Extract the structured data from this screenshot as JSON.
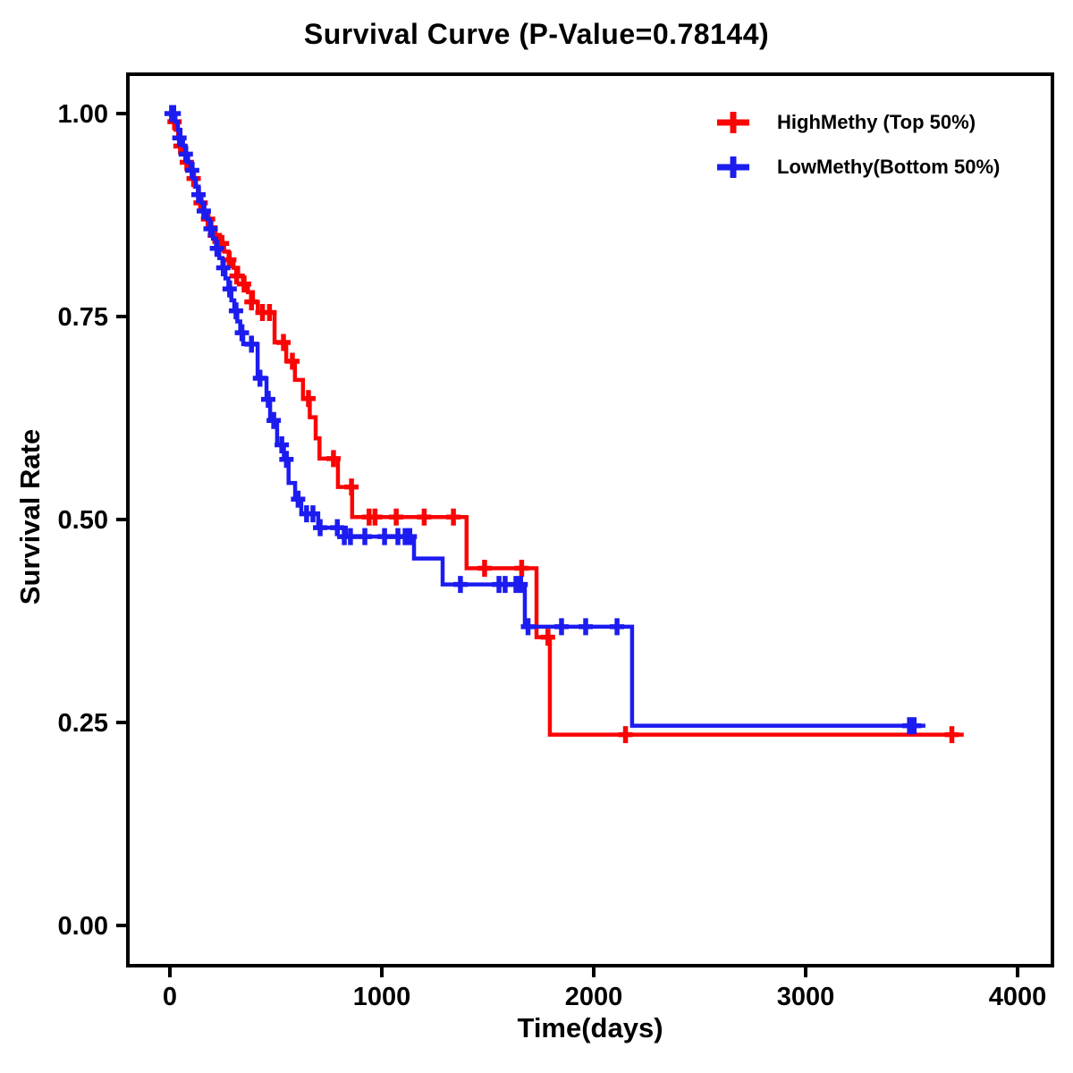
{
  "chart_data": {
    "type": "line",
    "subtype": "kaplan-meier-step",
    "title": "Survival Curve (P-Value=0.78144)",
    "xlabel": "Time(days)",
    "ylabel": "Survival Rate",
    "xlim": [
      0,
      4000
    ],
    "ylim": [
      0.0,
      1.0
    ],
    "x_ticks": [
      {
        "value": 0,
        "label": "0"
      },
      {
        "value": 1000,
        "label": "1000"
      },
      {
        "value": 2000,
        "label": "2000"
      },
      {
        "value": 3000,
        "label": "3000"
      },
      {
        "value": 4000,
        "label": "4000"
      }
    ],
    "y_ticks": [
      {
        "value": 0.0,
        "label": "0.00"
      },
      {
        "value": 0.25,
        "label": "0.25"
      },
      {
        "value": 0.5,
        "label": "0.50"
      },
      {
        "value": 0.75,
        "label": "0.75"
      },
      {
        "value": 1.0,
        "label": "1.00"
      }
    ],
    "grid": false,
    "legend_position": "top-right",
    "series": [
      {
        "name": "HighMethy (Top 50%)",
        "color": "#fa0505",
        "end_time": 3746,
        "points": [
          [
            0,
            1.0
          ],
          [
            14,
            0.99
          ],
          [
            27,
            0.98
          ],
          [
            39,
            0.97
          ],
          [
            51,
            0.96
          ],
          [
            63,
            0.95
          ],
          [
            76,
            0.94
          ],
          [
            90,
            0.93
          ],
          [
            104,
            0.92
          ],
          [
            118,
            0.91
          ],
          [
            132,
            0.9
          ],
          [
            147,
            0.89
          ],
          [
            162,
            0.88
          ],
          [
            178,
            0.87
          ],
          [
            196,
            0.86
          ],
          [
            215,
            0.85
          ],
          [
            235,
            0.84
          ],
          [
            256,
            0.83
          ],
          [
            278,
            0.82
          ],
          [
            300,
            0.81
          ],
          [
            322,
            0.8
          ],
          [
            345,
            0.79
          ],
          [
            368,
            0.78
          ],
          [
            392,
            0.768
          ],
          [
            415,
            0.755
          ],
          [
            494,
            0.718
          ],
          [
            549,
            0.695
          ],
          [
            590,
            0.672
          ],
          [
            628,
            0.649
          ],
          [
            660,
            0.626
          ],
          [
            688,
            0.6
          ],
          [
            706,
            0.575
          ],
          [
            793,
            0.54
          ],
          [
            860,
            0.503
          ],
          [
            1400,
            0.44
          ],
          [
            1730,
            0.355
          ],
          [
            1793,
            0.235
          ]
        ],
        "censors": [
          [
            22,
            0.99
          ],
          [
            50,
            0.96
          ],
          [
            80,
            0.94
          ],
          [
            112,
            0.92
          ],
          [
            145,
            0.89
          ],
          [
            180,
            0.87
          ],
          [
            212,
            0.85
          ],
          [
            246,
            0.84
          ],
          [
            280,
            0.82
          ],
          [
            315,
            0.8
          ],
          [
            350,
            0.79
          ],
          [
            385,
            0.768
          ],
          [
            437,
            0.755
          ],
          [
            470,
            0.755
          ],
          [
            536,
            0.718
          ],
          [
            578,
            0.695
          ],
          [
            654,
            0.649
          ],
          [
            772,
            0.575
          ],
          [
            857,
            0.54
          ],
          [
            940,
            0.503
          ],
          [
            968,
            0.503
          ],
          [
            1068,
            0.503
          ],
          [
            1200,
            0.503
          ],
          [
            1338,
            0.503
          ],
          [
            1485,
            0.44
          ],
          [
            1660,
            0.44
          ],
          [
            1784,
            0.355
          ],
          [
            2150,
            0.235
          ],
          [
            3690,
            0.235
          ]
        ]
      },
      {
        "name": "LowMethy(Bottom 50%)",
        "color": "#1c1cf0",
        "end_time": 3565,
        "points": [
          [
            0,
            1.0
          ],
          [
            26,
            0.99
          ],
          [
            38,
            0.98
          ],
          [
            50,
            0.97
          ],
          [
            62,
            0.96
          ],
          [
            74,
            0.95
          ],
          [
            86,
            0.94
          ],
          [
            98,
            0.93
          ],
          [
            110,
            0.92
          ],
          [
            123,
            0.91
          ],
          [
            136,
            0.9
          ],
          [
            149,
            0.89
          ],
          [
            162,
            0.88
          ],
          [
            175,
            0.87
          ],
          [
            189,
            0.858
          ],
          [
            203,
            0.846
          ],
          [
            218,
            0.834
          ],
          [
            233,
            0.822
          ],
          [
            248,
            0.81
          ],
          [
            262,
            0.797
          ],
          [
            276,
            0.784
          ],
          [
            290,
            0.77
          ],
          [
            304,
            0.757
          ],
          [
            318,
            0.744
          ],
          [
            332,
            0.73
          ],
          [
            346,
            0.716
          ],
          [
            414,
            0.674
          ],
          [
            456,
            0.648
          ],
          [
            473,
            0.622
          ],
          [
            506,
            0.592
          ],
          [
            538,
            0.574
          ],
          [
            560,
            0.545
          ],
          [
            591,
            0.525
          ],
          [
            620,
            0.507
          ],
          [
            700,
            0.49
          ],
          [
            830,
            0.479
          ],
          [
            1152,
            0.452
          ],
          [
            1287,
            0.42
          ],
          [
            1675,
            0.368
          ],
          [
            2181,
            0.246
          ]
        ],
        "censors": [
          [
            8,
            1.0
          ],
          [
            18,
            1.0
          ],
          [
            45,
            0.97
          ],
          [
            75,
            0.95
          ],
          [
            105,
            0.93
          ],
          [
            135,
            0.9
          ],
          [
            160,
            0.88
          ],
          [
            192,
            0.858
          ],
          [
            222,
            0.834
          ],
          [
            252,
            0.81
          ],
          [
            282,
            0.784
          ],
          [
            312,
            0.757
          ],
          [
            340,
            0.73
          ],
          [
            385,
            0.716
          ],
          [
            425,
            0.674
          ],
          [
            464,
            0.648
          ],
          [
            490,
            0.622
          ],
          [
            528,
            0.592
          ],
          [
            550,
            0.574
          ],
          [
            605,
            0.525
          ],
          [
            645,
            0.507
          ],
          [
            675,
            0.507
          ],
          [
            709,
            0.49
          ],
          [
            790,
            0.49
          ],
          [
            823,
            0.479
          ],
          [
            852,
            0.479
          ],
          [
            920,
            0.479
          ],
          [
            1013,
            0.479
          ],
          [
            1076,
            0.479
          ],
          [
            1110,
            0.479
          ],
          [
            1132,
            0.479
          ],
          [
            1371,
            0.42
          ],
          [
            1553,
            0.42
          ],
          [
            1582,
            0.42
          ],
          [
            1633,
            0.42
          ],
          [
            1655,
            0.42
          ],
          [
            1690,
            0.368
          ],
          [
            1848,
            0.368
          ],
          [
            1962,
            0.368
          ],
          [
            2110,
            0.368
          ],
          [
            3490,
            0.246
          ],
          [
            3512,
            0.246
          ]
        ]
      }
    ]
  }
}
